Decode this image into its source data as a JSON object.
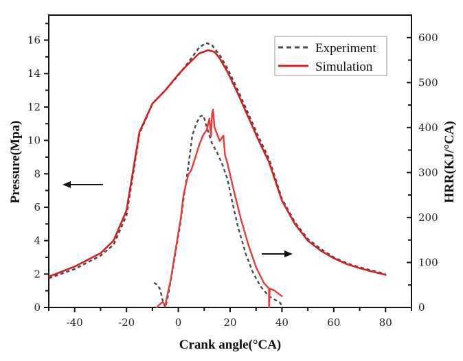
{
  "chart_data": {
    "type": "line",
    "title": "",
    "xlabel": "Crank angle(°CA)",
    "ylabel": "Pressure(Mpa)",
    "y2label": "HRR(KJ/°CA)",
    "xlim": [
      -50,
      90
    ],
    "ylim": [
      0,
      17.5
    ],
    "y2lim": [
      0,
      650
    ],
    "xticks": [
      -40,
      -20,
      0,
      20,
      40,
      60,
      80
    ],
    "xtick_labels": [
      "-40",
      "-20",
      "0",
      "20",
      "40",
      "60",
      "80"
    ],
    "xminor_step": 10,
    "yticks": [
      0,
      2,
      4,
      6,
      8,
      10,
      12,
      14,
      16
    ],
    "ytick_labels": [
      "0",
      "2",
      "4",
      "6",
      "8",
      "10",
      "12",
      "14",
      "16"
    ],
    "yminor_step": 1,
    "y2ticks": [
      0,
      100,
      200,
      300,
      400,
      500,
      600
    ],
    "y2tick_labels": [
      "0",
      "100",
      "200",
      "300",
      "400",
      "500",
      "600"
    ],
    "y2minor_step": 50,
    "grid": false,
    "legend": {
      "placement": "top-right",
      "entries": [
        {
          "label": "Experiment",
          "style": "dashed",
          "color": "#4a4a4a"
        },
        {
          "label": "Simulation",
          "style": "solid",
          "color": "#d42020"
        }
      ]
    },
    "annotations": [
      {
        "type": "arrow",
        "direction": "left",
        "meaning": "pressure curves refer to left axis"
      },
      {
        "type": "arrow",
        "direction": "right",
        "meaning": "HRR curves refer to right axis"
      }
    ],
    "series": [
      {
        "name": "Experiment",
        "quantity": "Pressure",
        "axis": "left",
        "color": "#4a4a4a",
        "style": "dashed",
        "x": [
          -50,
          -40,
          -30,
          -25,
          -20,
          -15,
          -10,
          -5,
          0,
          4,
          8,
          10.7,
          13,
          16,
          19,
          23,
          27,
          31,
          35,
          40,
          45,
          50,
          55,
          60,
          65,
          70,
          75,
          80
        ],
        "y": [
          1.75,
          2.3,
          3.1,
          3.75,
          5.5,
          10.4,
          12.2,
          13.0,
          13.9,
          14.7,
          15.55,
          15.84,
          15.7,
          15.1,
          14.3,
          13.0,
          11.6,
          10.2,
          8.9,
          6.5,
          5.1,
          4.1,
          3.5,
          3.0,
          2.65,
          2.4,
          2.2,
          2.0
        ]
      },
      {
        "name": "Simulation",
        "quantity": "Pressure",
        "axis": "left",
        "color": "#d42020",
        "style": "solid",
        "x": [
          -50,
          -40,
          -30,
          -25,
          -20,
          -15,
          -10,
          -5,
          0,
          4,
          8,
          11.5,
          14,
          16,
          19,
          23,
          27,
          31,
          35,
          40,
          45,
          50,
          55,
          60,
          65,
          70,
          75,
          80
        ],
        "y": [
          1.85,
          2.45,
          3.25,
          4.0,
          5.8,
          10.5,
          12.2,
          13.0,
          13.95,
          14.6,
          15.2,
          15.4,
          15.3,
          14.9,
          14.1,
          12.8,
          11.4,
          10.0,
          8.7,
          6.4,
          5.0,
          4.0,
          3.4,
          2.95,
          2.6,
          2.35,
          2.15,
          1.95
        ]
      },
      {
        "name": "Experiment",
        "quantity": "HRR",
        "axis": "right",
        "color": "#4a4a4a",
        "style": "dashed",
        "x": [
          -9.4,
          -8,
          -7,
          -6,
          -5,
          -4,
          -2,
          0,
          0.7,
          2,
          4,
          5.4,
          7,
          8.5,
          9.7,
          11,
          13,
          15,
          17,
          19,
          20.6,
          23,
          26,
          29,
          32,
          35,
          37,
          39,
          40
        ],
        "y": [
          55,
          50,
          40,
          15,
          0,
          25,
          90,
          160,
          183,
          240,
          320,
          382,
          410,
          425,
          427,
          400,
          365,
          344,
          318,
          285,
          240,
          180,
          120,
          75,
          45,
          25,
          18,
          12,
          5
        ]
      },
      {
        "name": "Simulation",
        "quantity": "HRR",
        "axis": "right",
        "color": "#e83a3a",
        "style": "solid",
        "x": [
          -8.3,
          -7,
          -6,
          -5,
          -4.5,
          -3,
          -1,
          1,
          2,
          3.8,
          5,
          6.7,
          8,
          9.5,
          11,
          12,
          12.6,
          13,
          13.4,
          14,
          15,
          16,
          17.4,
          18,
          19,
          21,
          24,
          27,
          30,
          33,
          35,
          35,
          35.3,
          37,
          40
        ],
        "y": [
          0,
          8,
          12,
          5,
          20,
          60,
          130,
          200,
          250,
          295,
          305,
          336,
          360,
          382,
          395,
          420,
          380,
          430,
          440,
          400,
          385,
          370,
          382,
          340,
          320,
          270,
          200,
          140,
          90,
          55,
          42,
          0,
          42,
          38,
          25
        ]
      }
    ]
  }
}
